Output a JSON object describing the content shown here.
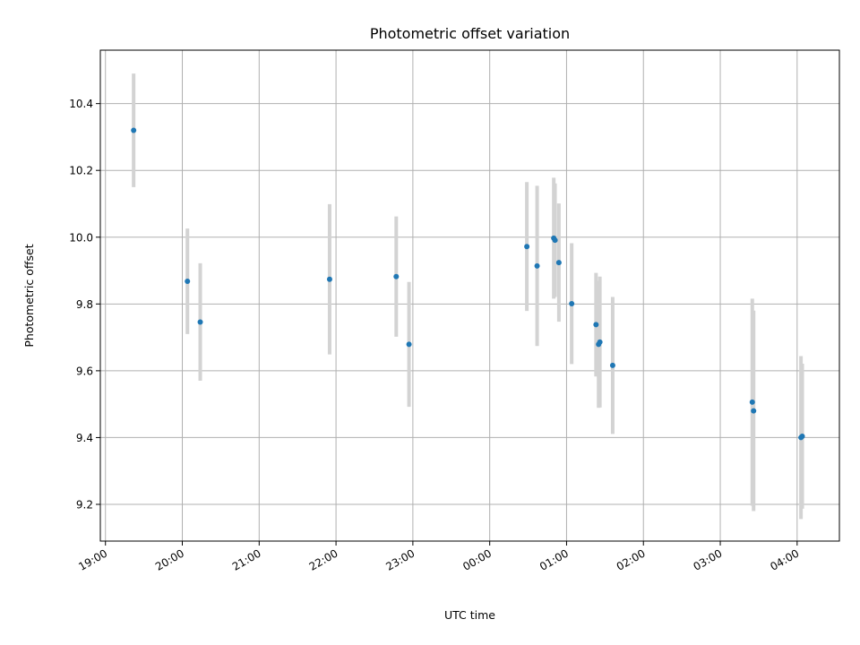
{
  "chart_data": {
    "type": "scatter",
    "title": "Photometric offset variation",
    "xlabel": "UTC time",
    "ylabel": "Photometric offset",
    "x_axis_type": "time",
    "xlim": [
      "18:56",
      "04:33"
    ],
    "ylim": [
      9.09,
      10.56
    ],
    "x_ticks": [
      "19:00",
      "20:00",
      "21:00",
      "22:00",
      "23:00",
      "00:00",
      "01:00",
      "02:00",
      "03:00",
      "04:00"
    ],
    "y_ticks": [
      "9.2",
      "9.4",
      "9.6",
      "9.8",
      "10.0",
      "10.2",
      "10.4"
    ],
    "grid": true,
    "point_color": "#1f77b4",
    "errorbar_color": "#d3d3d3",
    "points": [
      {
        "x": "19:22",
        "y": 10.32,
        "yerr": 0.17
      },
      {
        "x": "20:04",
        "y": 9.868,
        "yerr": 0.158
      },
      {
        "x": "20:14",
        "y": 9.746,
        "yerr": 0.176
      },
      {
        "x": "21:55",
        "y": 9.874,
        "yerr": 0.225
      },
      {
        "x": "22:47",
        "y": 9.882,
        "yerr": 0.18
      },
      {
        "x": "22:57",
        "y": 9.679,
        "yerr": 0.187
      },
      {
        "x": "00:29",
        "y": 9.972,
        "yerr": 0.193
      },
      {
        "x": "00:37",
        "y": 9.914,
        "yerr": 0.24
      },
      {
        "x": "00:50",
        "y": 9.997,
        "yerr": 0.181
      },
      {
        "x": "00:51",
        "y": 9.991,
        "yerr": 0.17
      },
      {
        "x": "00:54",
        "y": 9.924,
        "yerr": 0.177
      },
      {
        "x": "01:04",
        "y": 9.801,
        "yerr": 0.181
      },
      {
        "x": "01:23",
        "y": 9.738,
        "yerr": 0.155
      },
      {
        "x": "01:25",
        "y": 9.679,
        "yerr": 0.19
      },
      {
        "x": "01:26",
        "y": 9.686,
        "yerr": 0.196
      },
      {
        "x": "01:36",
        "y": 9.616,
        "yerr": 0.205
      },
      {
        "x": "03:25",
        "y": 9.506,
        "yerr": 0.31
      },
      {
        "x": "03:26",
        "y": 9.48,
        "yerr": 0.3
      },
      {
        "x": "04:03",
        "y": 9.4,
        "yerr": 0.244
      },
      {
        "x": "04:04",
        "y": 9.404,
        "yerr": 0.217
      }
    ]
  }
}
